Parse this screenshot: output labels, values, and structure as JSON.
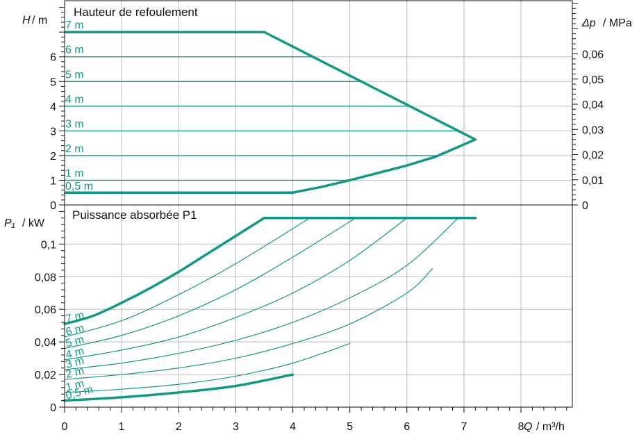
{
  "colors": {
    "curve": "#0f9a86",
    "grid": "#bdbdbd",
    "axis": "#111111"
  },
  "chart_data": [
    {
      "type": "line",
      "title": "Hauteur de refoulement",
      "ylabel_var": "H",
      "ylabel_unit": "/ m",
      "y2label_var": "Δp",
      "y2label_unit": "/ MPa",
      "xlim": [
        0,
        8.9
      ],
      "ylim": [
        0,
        8.3
      ],
      "y_ticks": [
        "0",
        "1",
        "2",
        "3",
        "4",
        "5",
        "6"
      ],
      "y2_ticks": [
        "0",
        "0,01",
        "0,02",
        "0,03",
        "0,04",
        "0,05",
        "0,06"
      ],
      "grid": true,
      "max_curve": {
        "x": [
          0,
          3.5,
          7.2
        ],
        "y": [
          7.0,
          7.0,
          2.65
        ]
      },
      "min_curve": {
        "x": [
          0,
          4.0,
          4.5,
          5.0,
          5.5,
          6.0,
          6.5,
          7.2
        ],
        "y": [
          0.5,
          0.5,
          0.73,
          1.0,
          1.3,
          1.6,
          1.95,
          2.65
        ]
      },
      "series": [
        {
          "name": "7 m",
          "head": 7.0
        },
        {
          "name": "6 m",
          "head": 6.0
        },
        {
          "name": "5 m",
          "head": 5.0
        },
        {
          "name": "4 m",
          "head": 4.0
        },
        {
          "name": "3 m",
          "head": 3.0
        },
        {
          "name": "2 m",
          "head": 2.0
        },
        {
          "name": "1 m",
          "head": 1.0
        },
        {
          "name": "0,5 m",
          "head": 0.5
        }
      ]
    },
    {
      "type": "line",
      "title": "Puissance absorbée P1",
      "ylabel_var": "P₁",
      "ylabel_unit": "/ kW",
      "xlabel_var": "Q",
      "xlabel_unit": "/ m³/h",
      "xlim": [
        0,
        8.9
      ],
      "ylim": [
        0,
        0.124
      ],
      "x_ticks": [
        "0",
        "1",
        "2",
        "3",
        "4",
        "5",
        "6",
        "7",
        "8"
      ],
      "y_ticks": [
        "0",
        "0,02",
        "0,04",
        "0,06",
        "0,08",
        "0,1"
      ],
      "grid": true,
      "series": [
        {
          "name": "7 m",
          "bold": true,
          "x": [
            0,
            0.5,
            1,
            1.5,
            2,
            2.5,
            3,
            3.5,
            7.2
          ],
          "y": [
            0.051,
            0.056,
            0.064,
            0.073,
            0.083,
            0.094,
            0.105,
            0.116,
            0.116
          ]
        },
        {
          "name": "6 m",
          "bold": false,
          "x": [
            0,
            1,
            2,
            3,
            4.3
          ],
          "y": [
            0.043,
            0.053,
            0.069,
            0.088,
            0.116
          ]
        },
        {
          "name": "5 m",
          "bold": false,
          "x": [
            0,
            1,
            2,
            3,
            4,
            5.1
          ],
          "y": [
            0.036,
            0.044,
            0.056,
            0.072,
            0.092,
            0.116
          ]
        },
        {
          "name": "4 m",
          "bold": false,
          "x": [
            0,
            1,
            2,
            3,
            4,
            5,
            6.0
          ],
          "y": [
            0.029,
            0.035,
            0.043,
            0.055,
            0.07,
            0.09,
            0.116
          ]
        },
        {
          "name": "3 m",
          "bold": false,
          "x": [
            0,
            1,
            2,
            3,
            4,
            5,
            6,
            6.9
          ],
          "y": [
            0.023,
            0.027,
            0.033,
            0.041,
            0.052,
            0.067,
            0.087,
            0.116
          ]
        },
        {
          "name": "2 m",
          "bold": false,
          "x": [
            0,
            1,
            2,
            3,
            4,
            5,
            6,
            6.45
          ],
          "y": [
            0.017,
            0.02,
            0.024,
            0.03,
            0.039,
            0.051,
            0.07,
            0.085
          ]
        },
        {
          "name": "1 m",
          "bold": false,
          "x": [
            0,
            1,
            2,
            3,
            4,
            5.0
          ],
          "y": [
            0.009,
            0.011,
            0.014,
            0.019,
            0.027,
            0.039
          ]
        },
        {
          "name": "0,5 m",
          "bold": true,
          "x": [
            0,
            1,
            2,
            3,
            4.0
          ],
          "y": [
            0.004,
            0.006,
            0.009,
            0.013,
            0.02
          ]
        }
      ]
    }
  ]
}
